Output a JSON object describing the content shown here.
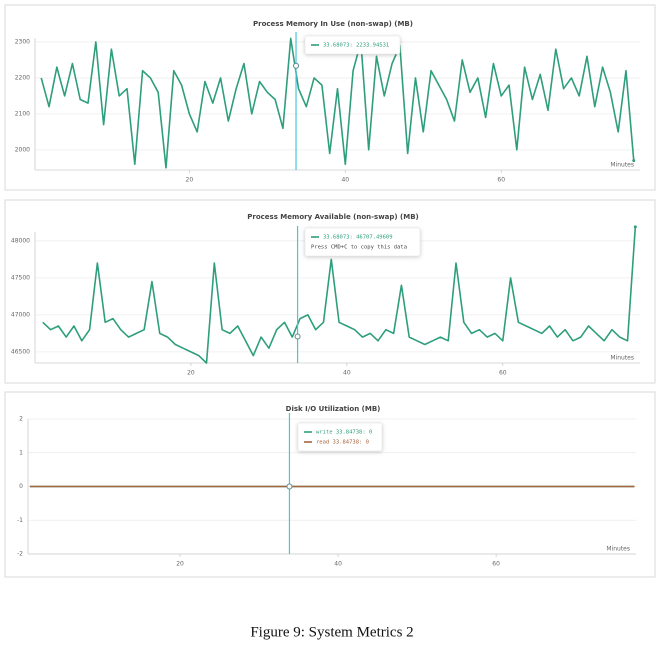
{
  "chart_data": [
    {
      "type": "line",
      "title": "Process Memory In Use (non-swap) (MB)",
      "x_label": "Minutes",
      "xlim": [
        0.2,
        77.8
      ],
      "xticks": [
        20,
        40,
        60
      ],
      "ylim": [
        1944,
        2311
      ],
      "yticks": [
        2000,
        2100,
        2200,
        2300
      ],
      "grid": true,
      "series": [
        {
          "color": "#2e9e7c",
          "x": [
            1,
            2,
            3,
            4,
            5,
            6,
            7,
            8,
            9,
            10,
            11,
            12,
            13,
            14,
            15,
            16,
            17,
            18,
            19,
            20,
            21,
            22,
            23,
            24,
            25,
            26,
            27,
            28,
            29,
            30,
            31,
            32,
            33,
            34,
            35,
            36,
            37,
            38,
            39,
            40,
            41,
            42,
            43,
            44,
            45,
            46,
            47,
            48,
            49,
            50,
            51,
            52,
            53,
            54,
            55,
            56,
            57,
            58,
            59,
            60,
            61,
            62,
            63,
            64,
            65,
            66,
            67,
            68,
            69,
            70,
            71,
            72,
            73,
            74,
            75,
            76,
            77
          ],
          "values": [
            2200,
            2120,
            2230,
            2150,
            2240,
            2140,
            2130,
            2300,
            2070,
            2280,
            2150,
            2170,
            1960,
            2220,
            2200,
            2160,
            1950,
            2220,
            2180,
            2100,
            2050,
            2190,
            2130,
            2200,
            2080,
            2170,
            2240,
            2100,
            2190,
            2160,
            2140,
            2060,
            2310,
            2170,
            2120,
            2200,
            2180,
            1990,
            2170,
            1960,
            2220,
            2300,
            2000,
            2260,
            2150,
            2240,
            2290,
            1990,
            2200,
            2050,
            2220,
            2180,
            2140,
            2080,
            2250,
            2160,
            2200,
            2090,
            2240,
            2150,
            2180,
            2000,
            2230,
            2140,
            2210,
            2110,
            2280,
            2170,
            2200,
            2150,
            2260,
            2120,
            2230,
            2160,
            2050,
            2220,
            1970
          ]
        }
      ],
      "cursor": {
        "x": 33.68073,
        "y": 2233.94531
      },
      "tooltip": [
        {
          "text": "33.68073: 2233.94531",
          "color": "#2e9e7c"
        }
      ]
    },
    {
      "type": "line",
      "title": "Process Memory Available (non-swap) (MB)",
      "x_label": "Minutes",
      "xlim": [
        0,
        77.6
      ],
      "xticks": [
        20,
        40,
        60
      ],
      "ylim": [
        46350,
        48120
      ],
      "yticks": [
        46500,
        47000,
        47500,
        48000
      ],
      "grid": true,
      "series": [
        {
          "color": "#2e9e7c",
          "x": [
            1,
            2,
            3,
            4,
            5,
            6,
            7,
            8,
            9,
            10,
            11,
            12,
            13,
            14,
            15,
            16,
            17,
            18,
            19,
            20,
            21,
            22,
            23,
            24,
            25,
            26,
            27,
            28,
            29,
            30,
            31,
            32,
            33,
            34,
            35,
            36,
            37,
            38,
            39,
            40,
            41,
            42,
            43,
            44,
            45,
            46,
            47,
            48,
            49,
            50,
            51,
            52,
            53,
            54,
            55,
            56,
            57,
            58,
            59,
            60,
            61,
            62,
            63,
            64,
            65,
            66,
            67,
            68,
            69,
            70,
            71,
            72,
            73,
            74,
            75,
            76,
            77
          ],
          "values": [
            46900,
            46800,
            46850,
            46700,
            46850,
            46650,
            46800,
            47700,
            46900,
            46950,
            46800,
            46700,
            46750,
            46800,
            47450,
            46750,
            46700,
            46600,
            46550,
            46500,
            46450,
            46350,
            47700,
            46800,
            46750,
            46850,
            46650,
            46450,
            46700,
            46550,
            46800,
            46900,
            46700,
            46950,
            47000,
            46800,
            46900,
            47750,
            46900,
            46850,
            46800,
            46700,
            46750,
            46650,
            46800,
            46750,
            47400,
            46700,
            46650,
            46600,
            46650,
            46700,
            46650,
            47700,
            46900,
            46750,
            46800,
            46700,
            46750,
            46650,
            47500,
            46900,
            46850,
            46800,
            46750,
            46850,
            46700,
            46800,
            46650,
            46700,
            46850,
            46750,
            46650,
            46800,
            46700,
            46650,
            48190
          ]
        }
      ],
      "cursor": {
        "x": 33.68073,
        "y": 46707.49609
      },
      "tooltip": [
        {
          "text": "33.68073: 46707.49609",
          "color": "#2e9e7c"
        },
        {
          "text": "Press CMD+C to copy this data"
        }
      ]
    },
    {
      "type": "line",
      "title": "Disk I/O Utilization (MB)",
      "x_label": "Minutes",
      "xlim": [
        0.76,
        77.7
      ],
      "xticks": [
        20,
        40,
        60
      ],
      "ylim": [
        -2,
        2
      ],
      "yticks": [
        -2,
        -1,
        0,
        1,
        2
      ],
      "grid": true,
      "series": [
        {
          "color": "#2e9e7c",
          "x": [
            1,
            20,
            40,
            60,
            77.5
          ],
          "values": [
            0,
            0,
            0,
            0,
            0
          ]
        },
        {
          "color": "#a8643e",
          "x": [
            1,
            20,
            40,
            60,
            77.5
          ],
          "values": [
            0,
            0,
            0,
            0,
            0
          ]
        }
      ],
      "cursor": {
        "x": 33.84738,
        "y": 0
      },
      "tooltip": [
        {
          "text": "write 33.84738: 0",
          "color": "#2e9e7c"
        },
        {
          "text": "read 33.84738: 0",
          "color": "#a8643e"
        }
      ]
    }
  ],
  "caption": "Figure 9: System Metrics 2"
}
